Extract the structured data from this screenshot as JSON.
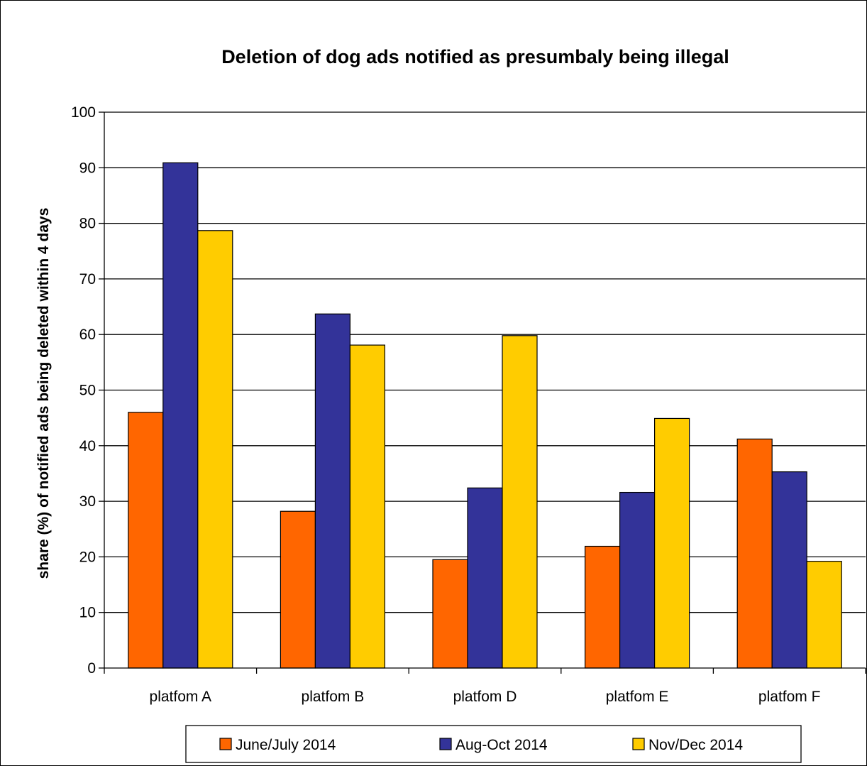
{
  "chart_data": {
    "type": "bar",
    "title": "Deletion of dog ads notified as presumbaly being illegal",
    "ylabel": "share (%) of notified ads being deleted within 4 days",
    "xlabel": "",
    "categories": [
      "platfom A",
      "platfom B",
      "platfom D",
      "platfom E",
      "platfom F"
    ],
    "series": [
      {
        "name": "June/July 2014",
        "color": "#ff6600",
        "values": [
          46,
          28.2,
          19.5,
          21.9,
          41.2
        ]
      },
      {
        "name": "Aug-Oct 2014",
        "color": "#333399",
        "values": [
          90.9,
          63.7,
          32.4,
          31.6,
          35.3
        ]
      },
      {
        "name": "Nov/Dec 2014",
        "color": "#ffcc00",
        "values": [
          78.7,
          58.1,
          59.8,
          44.9,
          19.2
        ]
      }
    ],
    "ylim": [
      0,
      100
    ],
    "yticks": [
      0,
      10,
      20,
      30,
      40,
      50,
      60,
      70,
      80,
      90,
      100
    ],
    "grid": true,
    "legend": "bottom"
  }
}
